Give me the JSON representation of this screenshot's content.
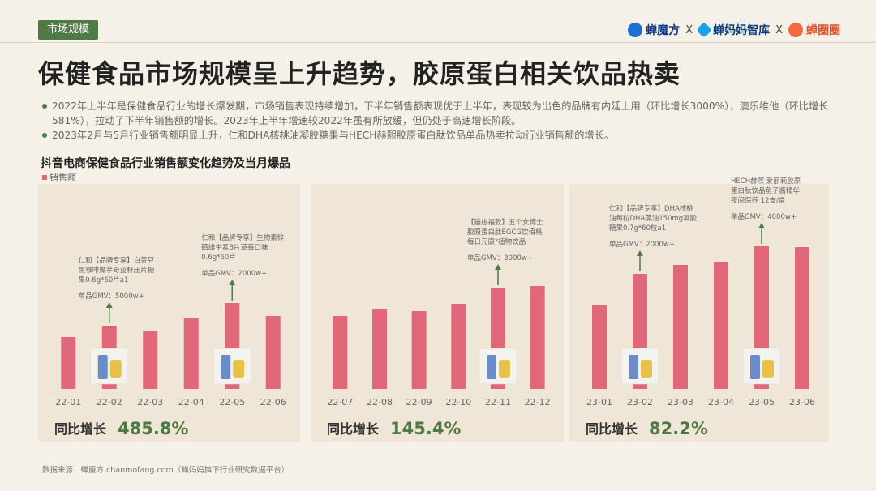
{
  "header": {
    "tag": "市场规模",
    "brands": [
      "蝉魔方",
      "蝉妈妈智库",
      "蝉圈圈"
    ],
    "separator": "X"
  },
  "title": "保健食品市场规模呈上升趋势，胶原蛋白相关饮品热卖",
  "bullets": [
    "2022年上半年是保健食品行业的增长爆发期，市场销售表现持续增加，下半年销售额表现优于上半年，表现较为出色的品牌有内廷上用（环比增长3000%），澳乐维他（环比增长581%），拉动了下半年销售额的增长。2023年上半年增速较2022年虽有所放缓，但仍处于高速增长阶段。",
    "2023年2月与5月行业销售额明显上升，仁和DHA核桃油凝胶糖果与HECH赫熙胶原蛋白肽饮品单品热卖拉动行业销售额的增长。"
  ],
  "chart_data": {
    "type": "bar",
    "title": "抖音电商保健食品行业销售额变化趋势及当月爆品",
    "legend": [
      "销售额"
    ],
    "colors": {
      "bar": "#e06878",
      "panel": "#efe6d8",
      "growth": "#4f7a43",
      "arrow": "#4f7a43"
    },
    "panels": [
      {
        "categories": [
          "22-01",
          "22-02",
          "22-03",
          "22-04",
          "22-05",
          "22-06"
        ],
        "values": [
          64,
          78,
          72,
          87,
          106,
          90
        ],
        "growth_label": "同比增长",
        "growth_value": "485.8%",
        "annotations": [
          {
            "index": 1,
            "lines": [
              "仁和【品牌专享】白芸豆",
              "黑咖啡魔芋奇亚籽压片糖",
              "果0.6g*60片a1"
            ],
            "gmv": "单品GMV：5000w+"
          },
          {
            "index": 4,
            "lines": [
              "仁和【品牌专享】生物素锌",
              "硒维生素B片草莓口味",
              "0.6g*60片"
            ],
            "gmv": "单品GMV：2000w+"
          }
        ]
      },
      {
        "categories": [
          "22-07",
          "22-08",
          "22-09",
          "22-10",
          "22-11",
          "22-12"
        ],
        "values": [
          90,
          99,
          96,
          105,
          125,
          127
        ],
        "growth_label": "同比增长",
        "growth_value": "145.4%",
        "annotations": [
          {
            "index": 4,
            "lines": [
              "【猫店福款】五个女博士",
              "胶原蛋白肽EGCG饮佰格",
              "每日元康*植物饮品"
            ],
            "gmv": "单品GMV：3000w+"
          }
        ]
      },
      {
        "categories": [
          "23-01",
          "23-02",
          "23-03",
          "23-04",
          "23-05",
          "23-06"
        ],
        "values": [
          104,
          142,
          153,
          157,
          176,
          175
        ],
        "growth_label": "同比增长",
        "growth_value": "82.2%",
        "annotations": [
          {
            "index": 1,
            "lines": [
              "仁和【品牌专享】DHA核桃",
              "油每粒DHA藻油150mg凝胶",
              "糖果0.7g*60粒a1"
            ],
            "gmv": "单品GMV：2000w+"
          },
          {
            "index": 4,
            "lines": [
              "HECH赫熙 爱丽莉胶原",
              "蛋白肽饮品鱼子酱精华",
              "夜间保养 12支/盒"
            ],
            "gmv": "单品GMV：4000w+"
          }
        ]
      }
    ]
  },
  "source": "数据来源：蝉魔方 chanmofang.com（蝉妈妈旗下行业研究数据平台）"
}
